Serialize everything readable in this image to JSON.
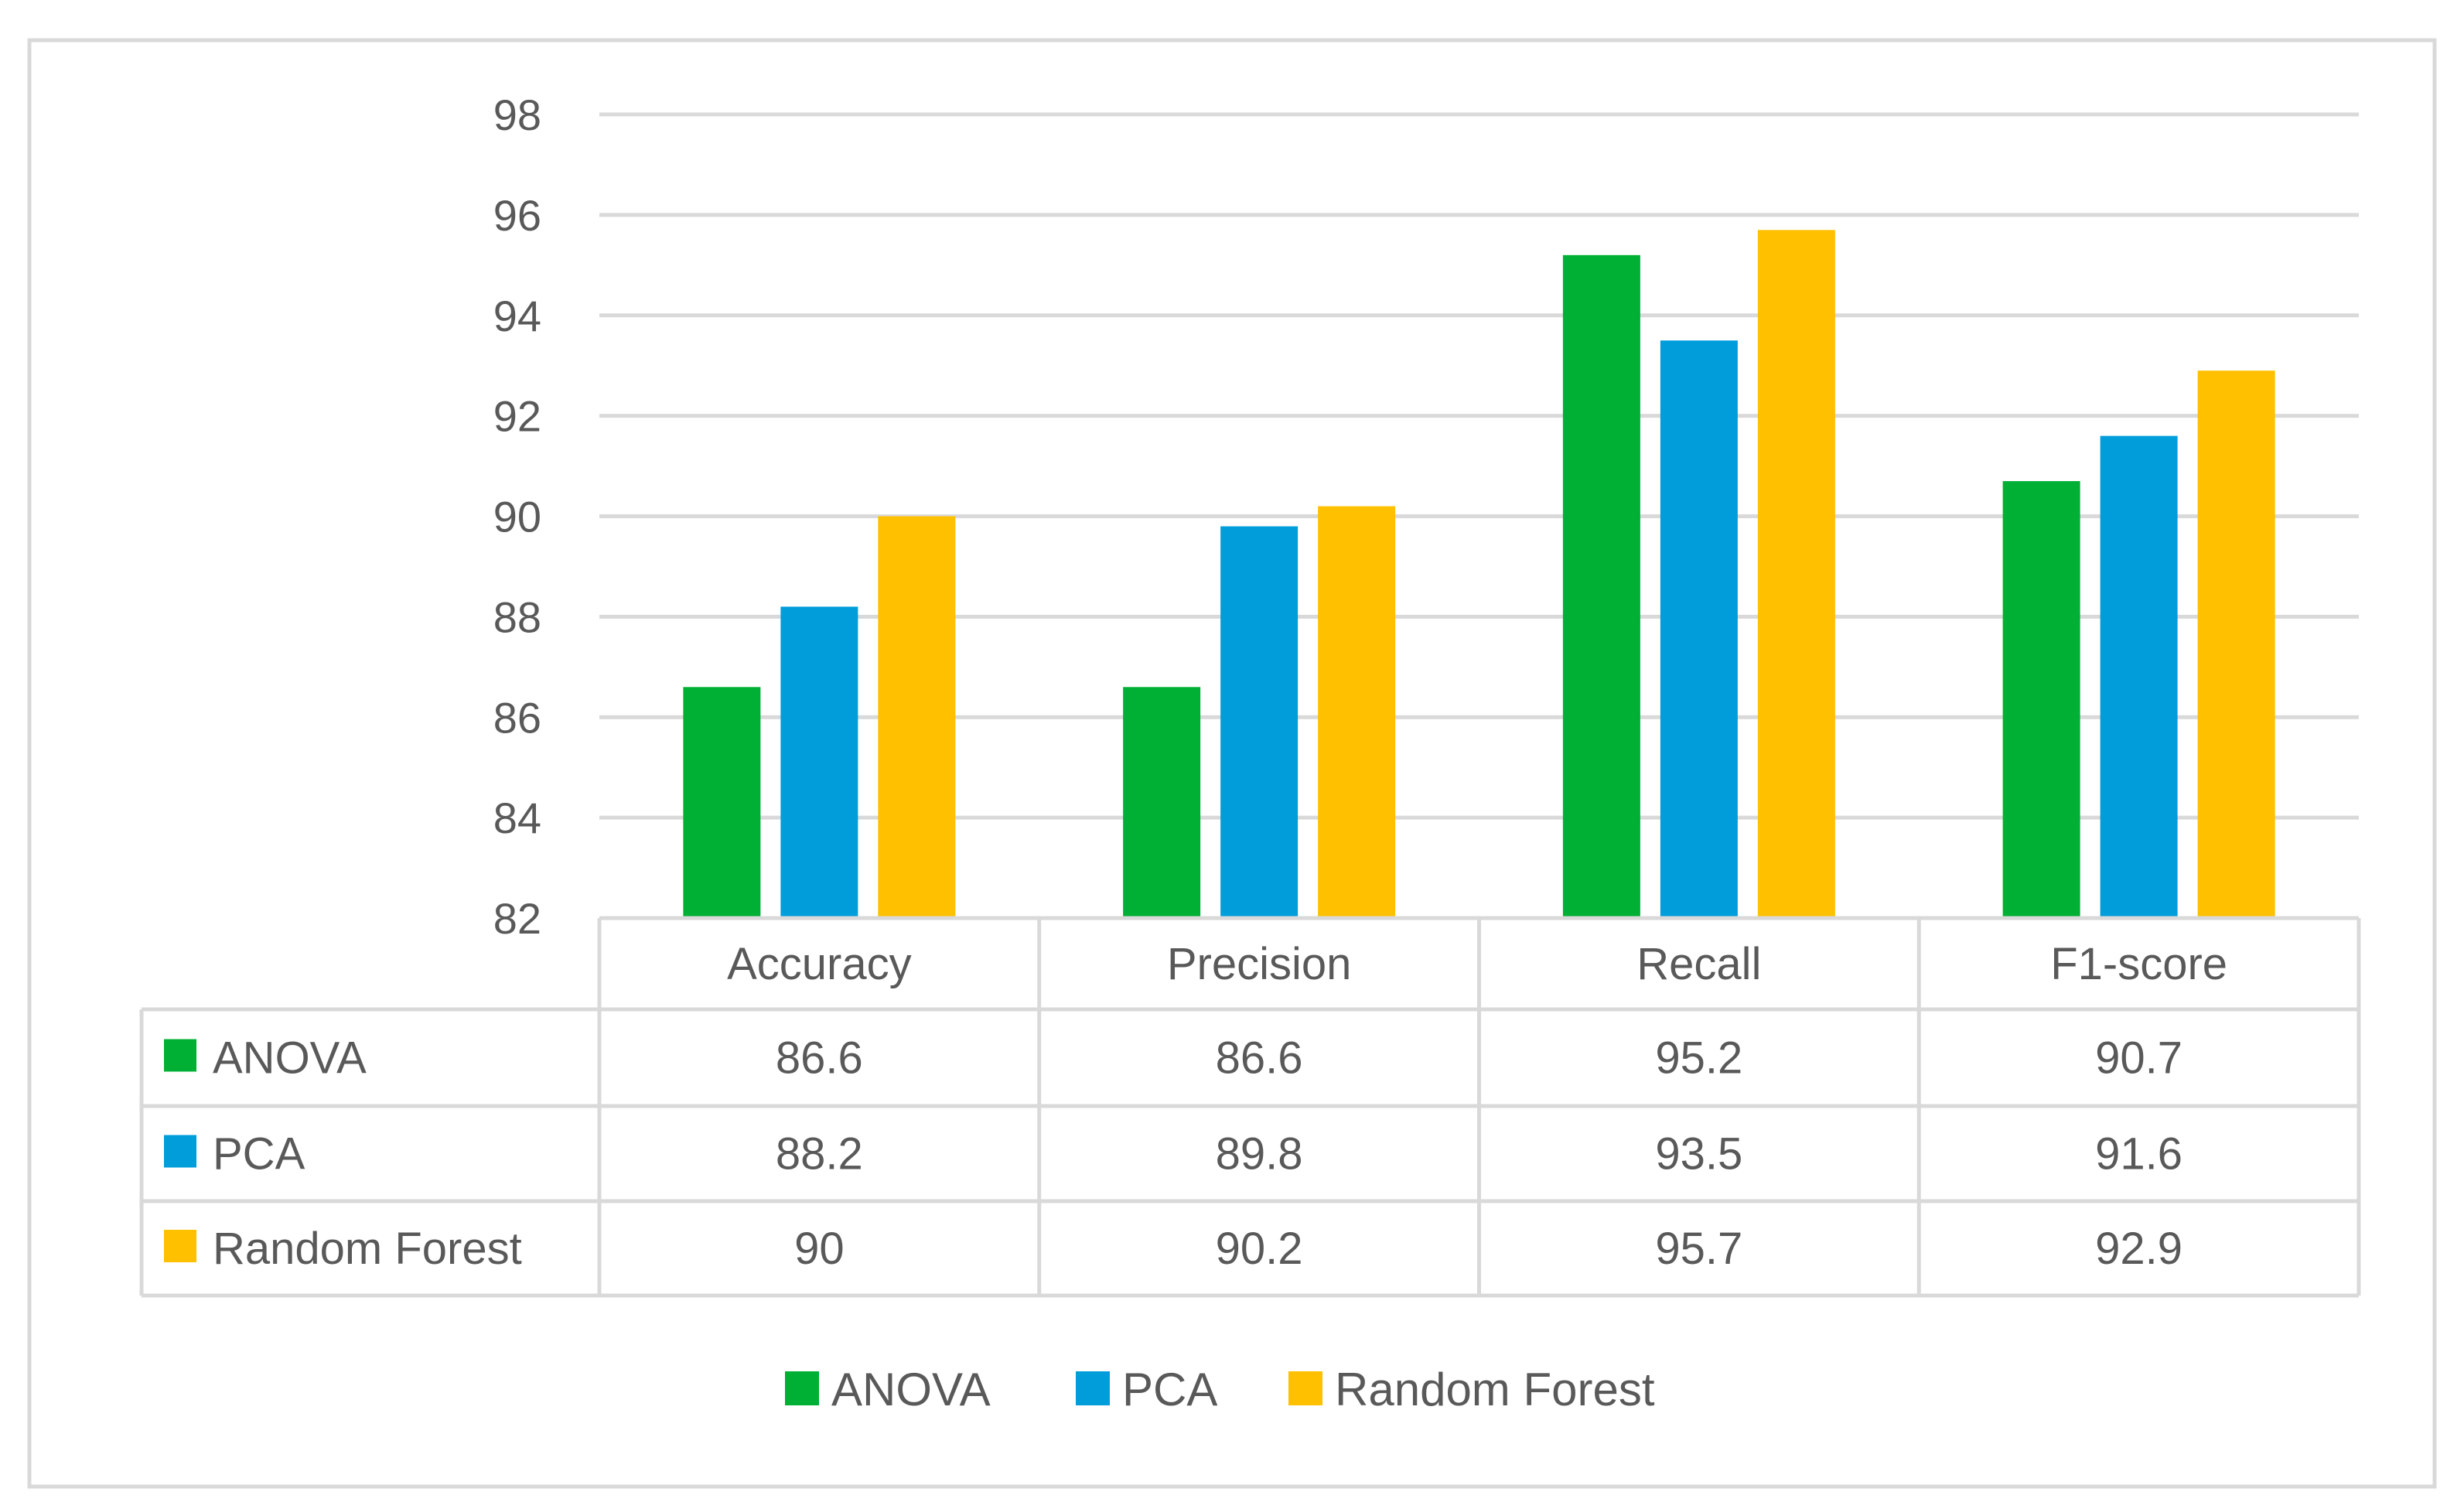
{
  "chart_data": {
    "type": "bar",
    "title": "",
    "xlabel": "",
    "ylabel": "",
    "ylim": [
      82,
      98
    ],
    "yticks": [
      "82",
      "84",
      "86",
      "88",
      "90",
      "92",
      "94",
      "96",
      "98"
    ],
    "grid": true,
    "data_table": true,
    "legend_position": "bottom",
    "categories": [
      "Accuracy",
      "Precision",
      "Recall",
      "F1-score"
    ],
    "series": [
      {
        "name": "ANOVA",
        "color": "#00B034",
        "values": [
          86.6,
          86.6,
          95.2,
          90.7
        ],
        "labels": [
          "86.6",
          "86.6",
          "95.2",
          "90.7"
        ]
      },
      {
        "name": "PCA",
        "color": "#009DDB",
        "values": [
          88.2,
          89.8,
          93.5,
          91.6
        ],
        "labels": [
          "88.2",
          "89.8",
          "93.5",
          "91.6"
        ]
      },
      {
        "name": "Random Forest",
        "color": "#FFC000",
        "values": [
          90,
          90.2,
          95.7,
          92.9
        ],
        "labels": [
          "90",
          "90.2",
          "95.7",
          "92.9"
        ]
      }
    ]
  }
}
